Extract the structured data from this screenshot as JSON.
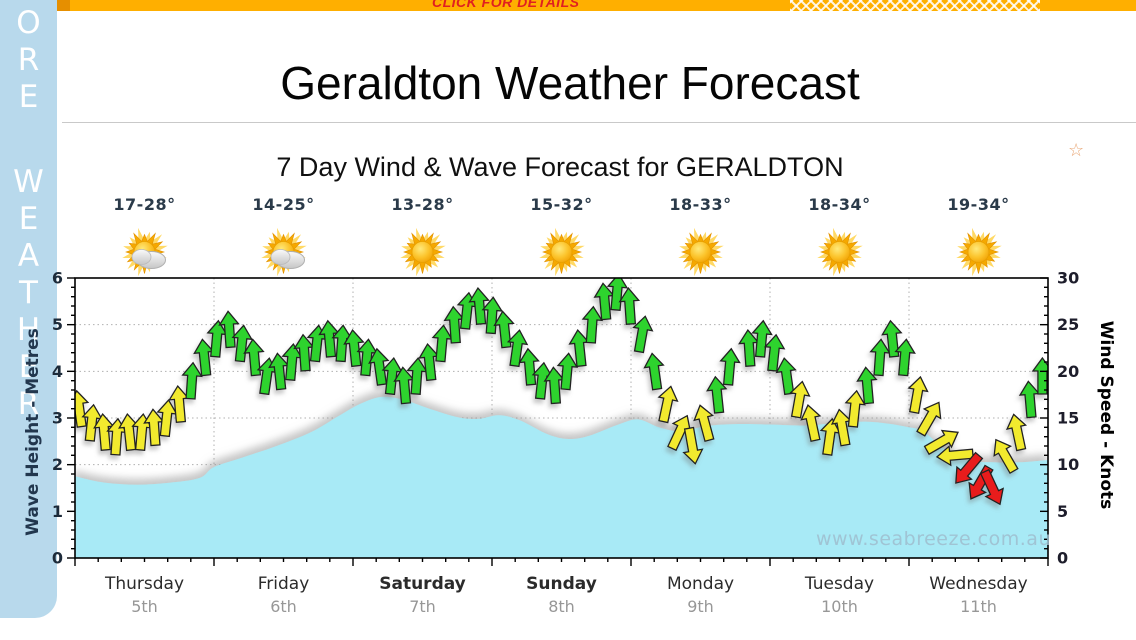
{
  "banner": {
    "text": "CLICK FOR DETAILS"
  },
  "sidebar": {
    "visible_vertical_text": "ORE WEATHER",
    "letters": [
      "O",
      "R",
      "E",
      "",
      "W",
      "E",
      "A",
      "T",
      "H",
      "E",
      "R"
    ]
  },
  "page_title": "Geraldton Weather Forecast",
  "chart_title": "7 Day Wind & Wave Forecast for GERALDTON",
  "star_glyph": "☆",
  "watermark": "www.seabreeze.com.au",
  "axes": {
    "left_label": "Wave Height - Metres",
    "right_label": "Wind Speed - Knots",
    "left_ticks": [
      0,
      1,
      2,
      3,
      4,
      5,
      6
    ],
    "right_ticks": [
      0,
      5,
      10,
      15,
      20,
      25,
      30
    ]
  },
  "days": [
    {
      "name": "Thursday",
      "date": "5th",
      "temp": "17-28°",
      "icon": "sun-cloud",
      "bold": false
    },
    {
      "name": "Friday",
      "date": "6th",
      "temp": "14-25°",
      "icon": "sun-cloud",
      "bold": false
    },
    {
      "name": "Saturday",
      "date": "7th",
      "temp": "13-28°",
      "icon": "sun",
      "bold": true
    },
    {
      "name": "Sunday",
      "date": "8th",
      "temp": "15-32°",
      "icon": "sun",
      "bold": true
    },
    {
      "name": "Monday",
      "date": "9th",
      "temp": "18-33°",
      "icon": "sun",
      "bold": false
    },
    {
      "name": "Tuesday",
      "date": "10th",
      "temp": "18-34°",
      "icon": "sun",
      "bold": false
    },
    {
      "name": "Wednesday",
      "date": "11th",
      "temp": "19-34°",
      "icon": "sun",
      "bold": false
    }
  ],
  "colors": {
    "wave_fill": "#a8eaf6",
    "wind_fresh_green": "#2ed32e",
    "wind_moderate_yellow": "#f2ea2e",
    "wind_light_red": "#e81e1e",
    "arrow_outline": "#222222",
    "banner_bg": "#ffaf00",
    "banner_text": "#e02020",
    "sidebar_bg": "#b8d9ec",
    "grid": "#b0b0b0"
  },
  "chart_data": {
    "type": "area",
    "subtype": "wave-height-area-plus-wind-arrows",
    "x_unit": "days (Thu 5th .. Wed 11th)",
    "xlim": [
      0,
      7
    ],
    "ylim_left_metres": [
      0,
      6
    ],
    "ylim_right_knots": [
      0,
      30
    ],
    "grid": "dotted, horizontal each metre, vertical each day boundary",
    "wave_height_m": {
      "name": "Wave Height (metres)",
      "points": [
        [
          0,
          1.75
        ],
        [
          0.2,
          1.62
        ],
        [
          0.45,
          1.57
        ],
        [
          0.7,
          1.62
        ],
        [
          0.9,
          1.72
        ],
        [
          1.0,
          1.95
        ],
        [
          1.2,
          2.15
        ],
        [
          1.45,
          2.4
        ],
        [
          1.7,
          2.7
        ],
        [
          1.9,
          3.05
        ],
        [
          2.05,
          3.3
        ],
        [
          2.2,
          3.45
        ],
        [
          2.35,
          3.4
        ],
        [
          2.55,
          3.2
        ],
        [
          2.75,
          3.02
        ],
        [
          2.9,
          2.98
        ],
        [
          3.05,
          3.06
        ],
        [
          3.2,
          2.95
        ],
        [
          3.4,
          2.65
        ],
        [
          3.55,
          2.55
        ],
        [
          3.7,
          2.62
        ],
        [
          3.9,
          2.85
        ],
        [
          4.05,
          2.97
        ],
        [
          4.2,
          2.8
        ],
        [
          4.35,
          2.72
        ],
        [
          4.55,
          2.83
        ],
        [
          4.75,
          2.87
        ],
        [
          5.0,
          2.86
        ],
        [
          5.25,
          2.84
        ],
        [
          5.5,
          2.9
        ],
        [
          5.7,
          2.92
        ],
        [
          5.85,
          2.88
        ],
        [
          6.0,
          2.8
        ],
        [
          6.1,
          2.72
        ],
        [
          6.25,
          2.35
        ],
        [
          6.4,
          2.1
        ],
        [
          6.6,
          2.05
        ],
        [
          6.8,
          2.05
        ],
        [
          7,
          2.1
        ]
      ]
    },
    "wind_knots": {
      "name": "Wind Speed (knots), arrow colour g=green fresh / y=yellow moderate / r=red light, rot=bearing deg",
      "arrows": [
        [
          0.03,
          16,
          "y",
          -8
        ],
        [
          0.12,
          14.5,
          "y",
          6
        ],
        [
          0.21,
          13.5,
          "y",
          -5
        ],
        [
          0.3,
          13,
          "y",
          4
        ],
        [
          0.39,
          13.5,
          "y",
          -6
        ],
        [
          0.48,
          13.5,
          "y",
          5
        ],
        [
          0.57,
          14,
          "y",
          -4
        ],
        [
          0.66,
          15,
          "y",
          6
        ],
        [
          0.75,
          16.5,
          "y",
          -5
        ],
        [
          0.84,
          19,
          "g",
          4
        ],
        [
          0.93,
          21.5,
          "g",
          -6
        ],
        [
          1.02,
          23.5,
          "g",
          5
        ],
        [
          1.11,
          24.5,
          "g",
          -4
        ],
        [
          1.2,
          23,
          "g",
          6
        ],
        [
          1.29,
          21.5,
          "g",
          -5
        ],
        [
          1.38,
          19.5,
          "g",
          8
        ],
        [
          1.47,
          20,
          "g",
          -6
        ],
        [
          1.56,
          21,
          "g",
          5
        ],
        [
          1.65,
          22,
          "g",
          -4
        ],
        [
          1.74,
          23,
          "g",
          6
        ],
        [
          1.83,
          23.5,
          "g",
          -5
        ],
        [
          1.92,
          23,
          "g",
          4
        ],
        [
          2.01,
          22.5,
          "g",
          -6
        ],
        [
          2.1,
          21.5,
          "g",
          5
        ],
        [
          2.19,
          20.5,
          "g",
          -8
        ],
        [
          2.28,
          19.5,
          "g",
          6
        ],
        [
          2.37,
          18.5,
          "g",
          -5
        ],
        [
          2.46,
          19.5,
          "g",
          4
        ],
        [
          2.55,
          21,
          "g",
          -6
        ],
        [
          2.64,
          23,
          "g",
          5
        ],
        [
          2.73,
          25,
          "g",
          -4
        ],
        [
          2.82,
          26.5,
          "g",
          6
        ],
        [
          2.91,
          27,
          "g",
          -5
        ],
        [
          3.0,
          26,
          "g",
          4
        ],
        [
          3.09,
          24.5,
          "g",
          -6
        ],
        [
          3.18,
          22.5,
          "g",
          8
        ],
        [
          3.27,
          20.5,
          "g",
          -5
        ],
        [
          3.36,
          19,
          "g",
          6
        ],
        [
          3.45,
          18.5,
          "g",
          -4
        ],
        [
          3.54,
          20,
          "g",
          5
        ],
        [
          3.63,
          22.5,
          "g",
          -6
        ],
        [
          3.72,
          25,
          "g",
          4
        ],
        [
          3.81,
          27.5,
          "g",
          -5
        ],
        [
          3.9,
          28.5,
          "g",
          5
        ],
        [
          3.99,
          27,
          "g",
          -4
        ],
        [
          4.08,
          24,
          "g",
          10
        ],
        [
          4.17,
          20,
          "g",
          -8
        ],
        [
          4.26,
          16.5,
          "y",
          12
        ],
        [
          4.35,
          13.5,
          "y",
          25
        ],
        [
          4.44,
          12,
          "y",
          170
        ],
        [
          4.53,
          14.5,
          "y",
          -15
        ],
        [
          4.62,
          17.5,
          "g",
          -6
        ],
        [
          4.71,
          20.5,
          "g",
          5
        ],
        [
          4.85,
          22.5,
          "g",
          -4
        ],
        [
          4.94,
          23.5,
          "g",
          5
        ],
        [
          5.03,
          22,
          "g",
          6
        ],
        [
          5.12,
          19.5,
          "g",
          -8
        ],
        [
          5.21,
          17,
          "y",
          10
        ],
        [
          5.3,
          14.5,
          "y",
          -12
        ],
        [
          5.43,
          13,
          "y",
          8
        ],
        [
          5.52,
          14,
          "y",
          -10
        ],
        [
          5.61,
          16,
          "y",
          6
        ],
        [
          5.7,
          18.5,
          "g",
          -5
        ],
        [
          5.79,
          21.5,
          "g",
          4
        ],
        [
          5.88,
          23.5,
          "g",
          -6
        ],
        [
          5.97,
          21.5,
          "g",
          5
        ],
        [
          6.06,
          17.5,
          "y",
          10
        ],
        [
          6.15,
          15,
          "y",
          30
        ],
        [
          6.24,
          12.5,
          "y",
          60
        ],
        [
          6.33,
          11,
          "y",
          -95
        ],
        [
          6.42,
          9.5,
          "r",
          -140
        ],
        [
          6.51,
          8,
          "r",
          -150
        ],
        [
          6.6,
          7.5,
          "r",
          155
        ],
        [
          6.69,
          11,
          "y",
          -30
        ],
        [
          6.78,
          13.5,
          "y",
          -12
        ],
        [
          6.87,
          17,
          "g",
          -5
        ],
        [
          6.96,
          19.5,
          "g",
          0
        ]
      ]
    }
  }
}
